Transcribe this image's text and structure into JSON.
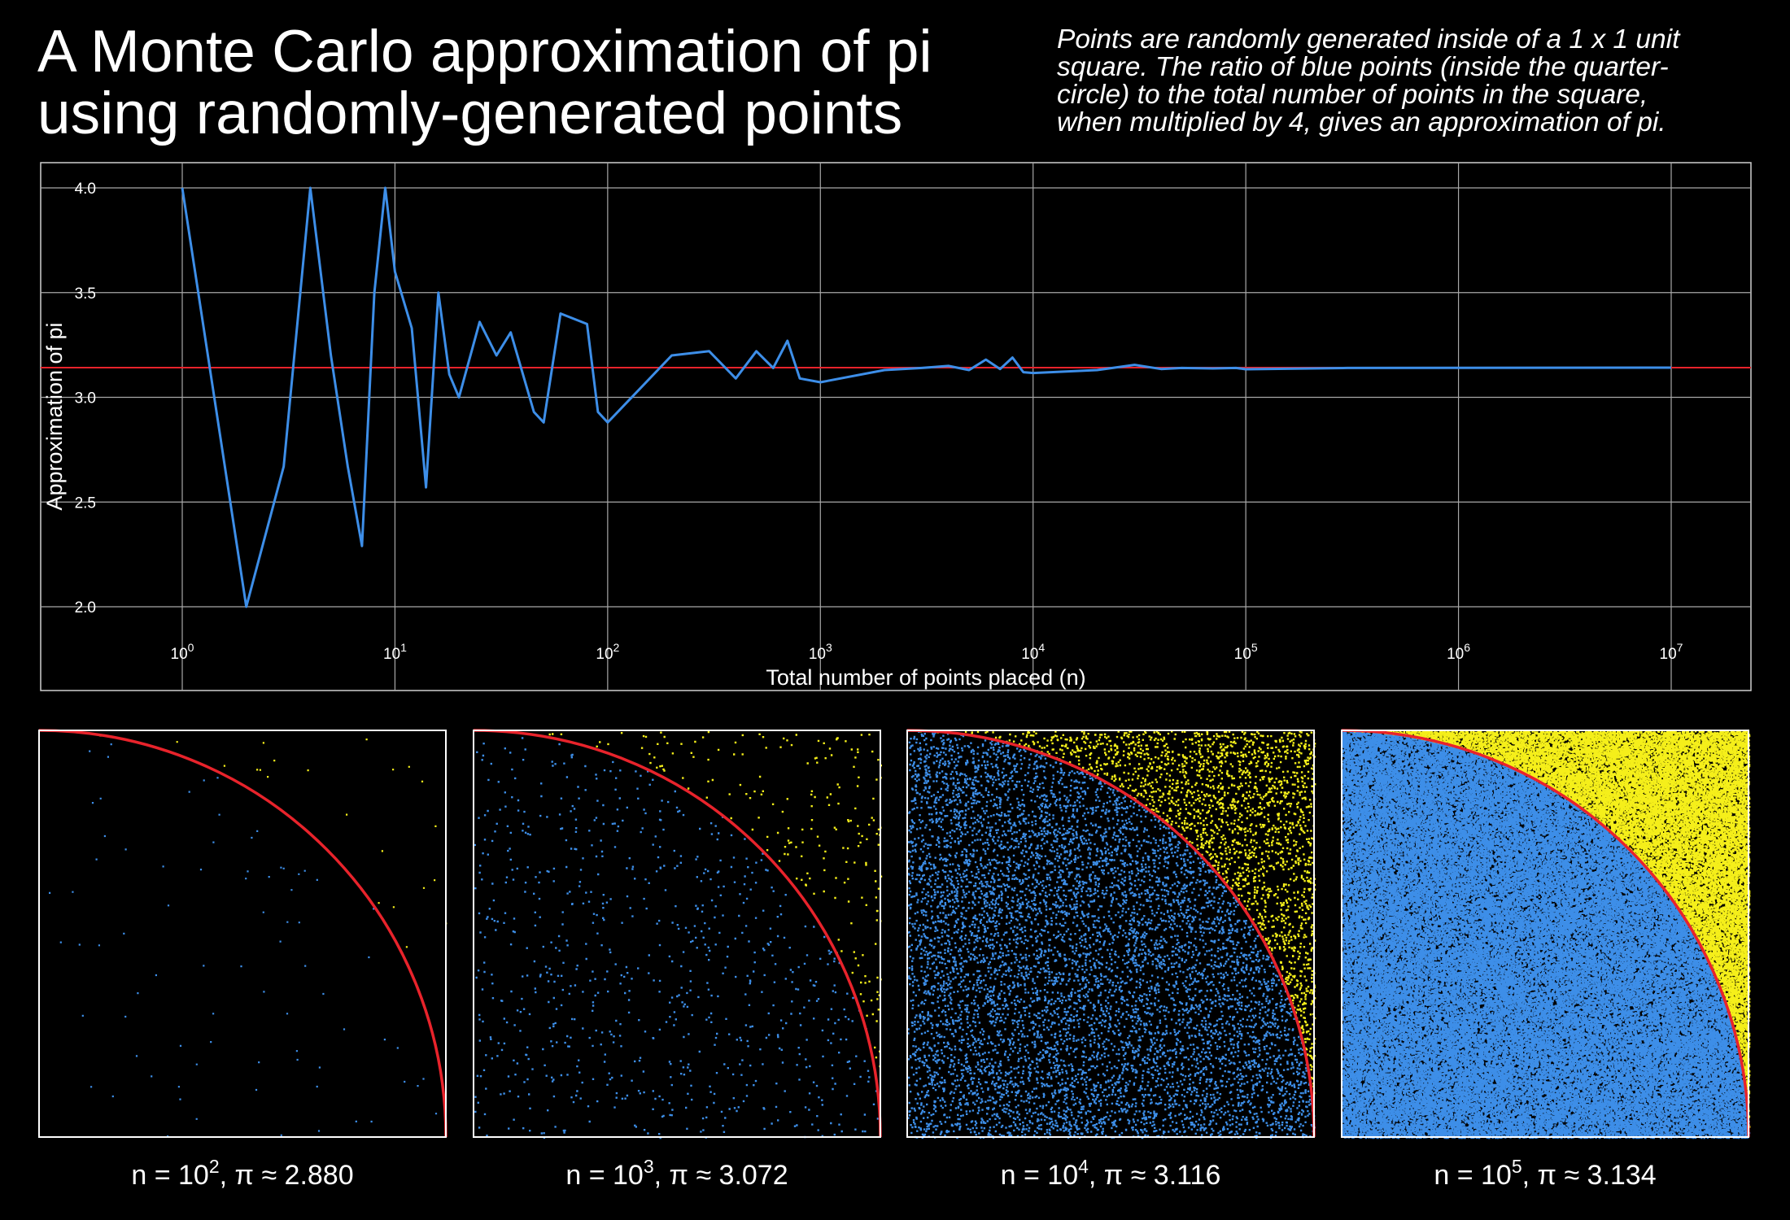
{
  "title_lines": [
    "A Monte Carlo approximation of pi",
    "using randomly-generated points"
  ],
  "subtitle_lines": [
    "Points are randomly generated inside of a 1 x 1 unit",
    "square. The ratio of blue points (inside the quarter-",
    "circle) to the total number of points in the square,",
    "when multiplied by 4, gives an approximation of pi."
  ],
  "colors": {
    "background": "#000000",
    "series": "#3d8ee8",
    "reference": "#e8232b",
    "inside": "#3d8ee8",
    "outside": "#f5ef1a",
    "frame": "#ffffff"
  },
  "chart_data": [
    {
      "type": "line",
      "xlabel": "Total number of points placed (n)",
      "ylabel": "Approximation of pi",
      "x_scale": "log10",
      "xlim": [
        0.5,
        15000000
      ],
      "ylim": [
        1.9,
        4.1
      ],
      "y_ticks": [
        "2.0",
        "2.5",
        "3.0",
        "3.5",
        "4.0"
      ],
      "x_ticks": [
        {
          "value": 1,
          "base": "10",
          "exp": "0"
        },
        {
          "value": 10,
          "base": "10",
          "exp": "1"
        },
        {
          "value": 100,
          "base": "10",
          "exp": "2"
        },
        {
          "value": 1000,
          "base": "10",
          "exp": "3"
        },
        {
          "value": 10000,
          "base": "10",
          "exp": "4"
        },
        {
          "value": 100000,
          "base": "10",
          "exp": "5"
        },
        {
          "value": 1000000,
          "base": "10",
          "exp": "6"
        },
        {
          "value": 10000000,
          "base": "10",
          "exp": "7"
        }
      ],
      "grid": true,
      "reference_line": 3.14159,
      "series": [
        {
          "x": [
            1,
            2,
            3,
            4,
            5,
            6,
            7,
            8,
            9,
            10,
            12,
            14,
            16,
            18,
            20,
            25,
            30,
            35,
            45,
            50,
            60,
            80,
            90,
            100,
            200,
            300,
            400,
            500,
            600,
            700,
            800,
            1000,
            2000,
            3000,
            4000,
            5000,
            6000,
            7000,
            8000,
            9000,
            10000,
            20000,
            30000,
            40000,
            50000,
            70000,
            90000,
            100000,
            300000,
            1000000,
            10000000
          ],
          "y": [
            4.0,
            2.0,
            2.67,
            4.0,
            3.2,
            2.67,
            2.29,
            3.5,
            4.0,
            3.6,
            3.33,
            2.57,
            3.5,
            3.11,
            3.0,
            3.36,
            3.2,
            3.31,
            2.93,
            2.88,
            3.4,
            3.35,
            2.93,
            2.88,
            3.2,
            3.22,
            3.09,
            3.22,
            3.14,
            3.27,
            3.09,
            3.072,
            3.13,
            3.14,
            3.15,
            3.13,
            3.18,
            3.135,
            3.19,
            3.12,
            3.116,
            3.13,
            3.155,
            3.135,
            3.14,
            3.138,
            3.14,
            3.134,
            3.14,
            3.141,
            3.1416
          ]
        }
      ]
    },
    {
      "type": "scatter",
      "panels": [
        {
          "n_exp": "2",
          "n_points": 100,
          "pi": "2.880",
          "marker_size": 2.2
        },
        {
          "n_exp": "3",
          "n_points": 1000,
          "pi": "3.072",
          "marker_size": 2.4
        },
        {
          "n_exp": "4",
          "n_points": 10000,
          "pi": "3.116",
          "marker_size": 2.4
        },
        {
          "n_exp": "5",
          "n_points": 100000,
          "pi": "3.134",
          "marker_size": 2.4
        }
      ],
      "caption_prefix": "n = ",
      "caption_middle": ", ",
      "pi_symbol": "π",
      "approx_symbol": "≈"
    }
  ]
}
